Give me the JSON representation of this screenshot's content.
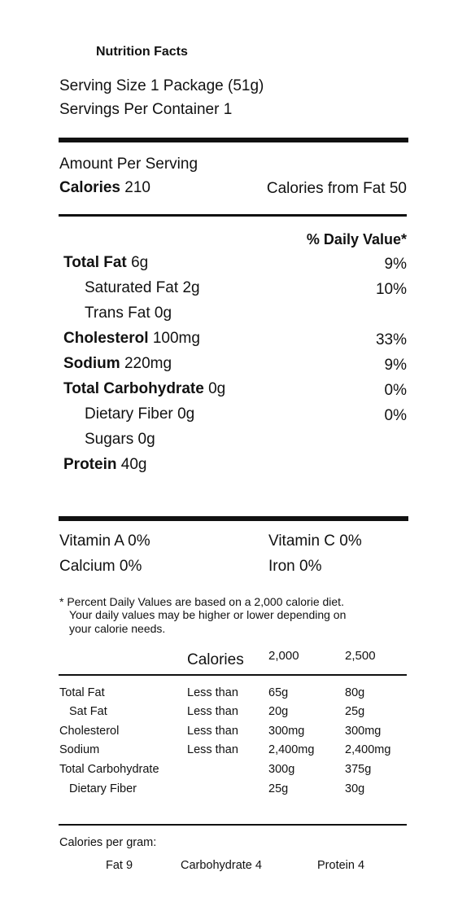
{
  "header": {
    "title": "Nutrition Facts",
    "serving_size": "Serving Size 1 Package (51g)",
    "servings_per_container": "Servings Per Container 1"
  },
  "amount_per_serving": "Amount Per Serving",
  "calories": {
    "label": "Calories",
    "value": "210",
    "from_fat": "Calories from Fat 50"
  },
  "daily_value_header": "% Daily Value*",
  "nutrients": [
    {
      "name": "Total Fat",
      "amount": "6g",
      "dv": "9%"
    },
    {
      "name": "Saturated Fat",
      "amount": "2g",
      "dv": "10%"
    },
    {
      "name": "Trans Fat",
      "amount": "0g"
    },
    {
      "name": "Cholesterol",
      "amount": "100mg",
      "dv": "33%"
    },
    {
      "name": "Sodium",
      "amount": "220mg",
      "dv": "9%"
    },
    {
      "name": "Total Carbohydrate",
      "amount": "0g",
      "dv": "0%"
    },
    {
      "name": "Dietary Fiber",
      "amount": "0g",
      "dv": "0%"
    },
    {
      "name": "Sugars",
      "amount": "0g"
    },
    {
      "name": "Protein",
      "amount": "40g"
    }
  ],
  "vitamins": [
    [
      "Vitamin A 0%",
      "Vitamin C 0%"
    ],
    [
      "Calcium 0%",
      "Iron 0%"
    ]
  ],
  "footnote": [
    "* Percent Daily Values are based on a 2,000 calorie diet.",
    "Your daily values may be higher or lower depending on",
    "your calorie needs."
  ],
  "reference_table": {
    "header": [
      "Calories",
      "2,000",
      "2,500"
    ],
    "rows": [
      {
        "nutrient": "Total Fat",
        "limit": "Less than",
        "v2000": "65g",
        "v2500": "80g"
      },
      {
        "nutrient": "Sat Fat",
        "limit": "Less than",
        "v2000": "20g",
        "v2500": "25g"
      },
      {
        "nutrient": "Cholesterol",
        "limit": "Less than",
        "v2000": "300mg",
        "v2500": "300mg"
      },
      {
        "nutrient": "Sodium",
        "limit": "Less than",
        "v2000": "2,400mg",
        "v2500": "2,400mg"
      },
      {
        "nutrient": "Total Carbohydrate",
        "v2000": "300g",
        "v2500": "375g"
      },
      {
        "nutrient": "Dietary Fiber",
        "v2000": "25g",
        "v2500": "30g"
      }
    ]
  },
  "calories_per_gram": {
    "label": "Calories per gram:",
    "items": [
      "Fat 9",
      "Carbohydrate 4",
      "Protein 4"
    ]
  }
}
